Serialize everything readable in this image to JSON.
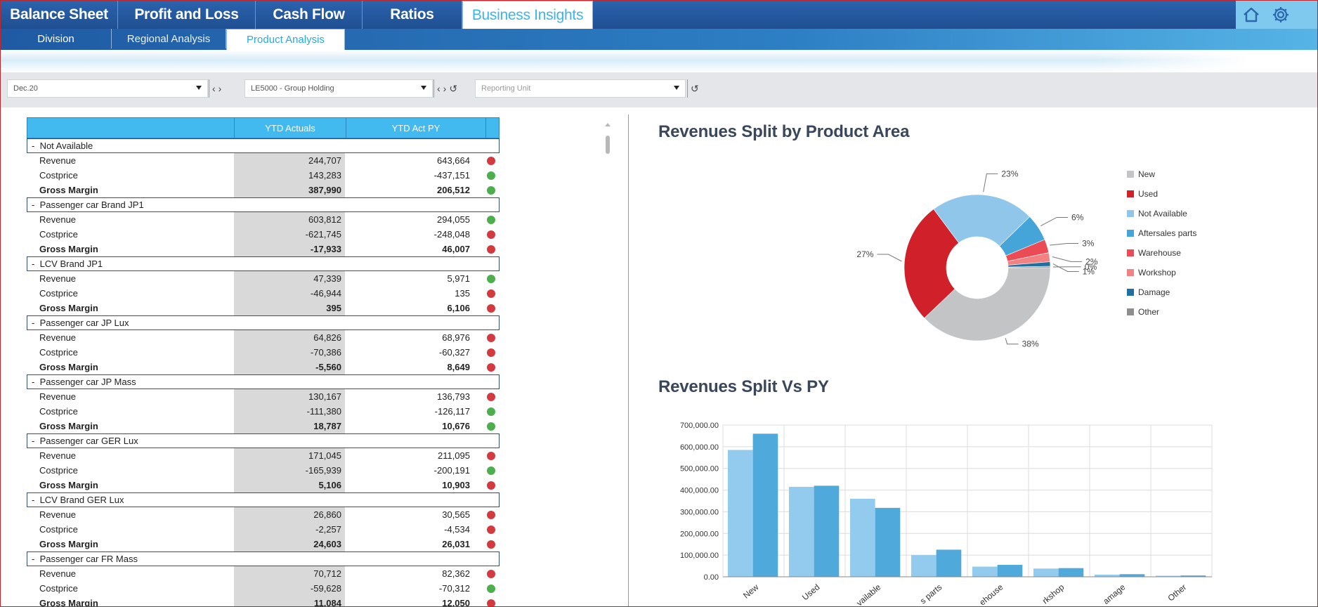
{
  "nav": {
    "main_tabs": [
      {
        "label": "Balance Sheet",
        "active": false
      },
      {
        "label": "Profit and Loss",
        "active": false
      },
      {
        "label": "Cash Flow",
        "active": false
      },
      {
        "label": "Ratios",
        "active": false
      },
      {
        "label": "Business Insights",
        "active": true
      }
    ],
    "sub_tabs": [
      {
        "label": "Division",
        "active": false
      },
      {
        "label": "Regional Analysis",
        "active": false
      },
      {
        "label": "Product Analysis",
        "active": true
      }
    ],
    "icons": [
      "home-icon",
      "gear-icon"
    ]
  },
  "filters": {
    "period": {
      "value": "Dec.20"
    },
    "entity": {
      "value": "LE5000 - Group Holding"
    },
    "reporting_unit": {
      "placeholder": "Reporting Unit"
    }
  },
  "table": {
    "columns": [
      "",
      "YTD Actuals",
      "YTD Act PY"
    ],
    "groups": [
      {
        "name": "Not Available",
        "rows": [
          {
            "label": "Revenue",
            "ytd": "244,707",
            "py": "643,664",
            "status": "red"
          },
          {
            "label": "Costprice",
            "ytd": "143,283",
            "py": "-437,151",
            "status": "green"
          },
          {
            "label": "Gross Margin",
            "ytd": "387,990",
            "py": "206,512",
            "status": "green"
          }
        ]
      },
      {
        "name": "Passenger car Brand JP1",
        "rows": [
          {
            "label": "Revenue",
            "ytd": "603,812",
            "py": "294,055",
            "status": "green"
          },
          {
            "label": "Costprice",
            "ytd": "-621,745",
            "py": "-248,048",
            "status": "red"
          },
          {
            "label": "Gross Margin",
            "ytd": "-17,933",
            "py": "46,007",
            "status": "red"
          }
        ]
      },
      {
        "name": "LCV Brand JP1",
        "rows": [
          {
            "label": "Revenue",
            "ytd": "47,339",
            "py": "5,971",
            "status": "green"
          },
          {
            "label": "Costprice",
            "ytd": "-46,944",
            "py": "135",
            "status": "red"
          },
          {
            "label": "Gross Margin",
            "ytd": "395",
            "py": "6,106",
            "status": "red"
          }
        ]
      },
      {
        "name": "Passenger car JP Lux",
        "rows": [
          {
            "label": "Revenue",
            "ytd": "64,826",
            "py": "68,976",
            "status": "red"
          },
          {
            "label": "Costprice",
            "ytd": "-70,386",
            "py": "-60,327",
            "status": "red"
          },
          {
            "label": "Gross Margin",
            "ytd": "-5,560",
            "py": "8,649",
            "status": "red"
          }
        ]
      },
      {
        "name": "Passenger car JP Mass",
        "rows": [
          {
            "label": "Revenue",
            "ytd": "130,167",
            "py": "136,793",
            "status": "red"
          },
          {
            "label": "Costprice",
            "ytd": "-111,380",
            "py": "-126,117",
            "status": "green"
          },
          {
            "label": "Gross Margin",
            "ytd": "18,787",
            "py": "10,676",
            "status": "green"
          }
        ]
      },
      {
        "name": "Passenger car GER Lux",
        "rows": [
          {
            "label": "Revenue",
            "ytd": "171,045",
            "py": "211,095",
            "status": "red"
          },
          {
            "label": "Costprice",
            "ytd": "-165,939",
            "py": "-200,191",
            "status": "green"
          },
          {
            "label": "Gross Margin",
            "ytd": "5,106",
            "py": "10,903",
            "status": "red"
          }
        ]
      },
      {
        "name": "LCV Brand GER Lux",
        "rows": [
          {
            "label": "Revenue",
            "ytd": "26,860",
            "py": "30,565",
            "status": "red"
          },
          {
            "label": "Costprice",
            "ytd": "-2,257",
            "py": "-4,534",
            "status": "red"
          },
          {
            "label": "Gross Margin",
            "ytd": "24,603",
            "py": "26,031",
            "status": "red"
          }
        ]
      },
      {
        "name": "Passenger car FR Mass",
        "rows": [
          {
            "label": "Revenue",
            "ytd": "70,712",
            "py": "82,362",
            "status": "red"
          },
          {
            "label": "Costprice",
            "ytd": "-59,628",
            "py": "-70,312",
            "status": "green"
          },
          {
            "label": "Gross Margin",
            "ytd": "11,084",
            "py": "12,050",
            "status": "red"
          }
        ]
      }
    ]
  },
  "colors": {
    "red": "#d23a3f",
    "green": "#4cae4c"
  },
  "chart_data": [
    {
      "type": "pie",
      "title": "Revenues Split by Product Area",
      "donut": true,
      "legend_position": "right",
      "slices": [
        {
          "name": "New",
          "value": 38,
          "label": "38%",
          "color": "#c2c4c6"
        },
        {
          "name": "Used",
          "value": 27,
          "label": "27%",
          "color": "#d0202a"
        },
        {
          "name": "Not Available",
          "value": 23,
          "label": "23%",
          "color": "#8fc6ea"
        },
        {
          "name": "Aftersales parts",
          "value": 6,
          "label": "6%",
          "color": "#45a4d8"
        },
        {
          "name": "Warehouse",
          "value": 3,
          "label": "3%",
          "color": "#ea4b55"
        },
        {
          "name": "Workshop",
          "value": 2,
          "label": "2%",
          "color": "#f28282"
        },
        {
          "name": "Damage",
          "value": 1,
          "label": "1%",
          "color": "#1f6fa0"
        },
        {
          "name": "Other",
          "value": 0.3,
          "label": "0%",
          "color": "#8e8e8e"
        }
      ]
    },
    {
      "type": "bar",
      "title": "Revenues Split Vs PY",
      "grid": true,
      "categories": [
        "New",
        "Used",
        "Not Available",
        "Aftersales parts",
        "Warehouse",
        "Workshop",
        "Damage",
        "Other"
      ],
      "tick_labels": [
        "New",
        "Used",
        "vailable",
        "s parts",
        "ehouse",
        "rkshop",
        "amage",
        "Other"
      ],
      "series": [
        {
          "values": [
            585000,
            415000,
            360000,
            100000,
            47000,
            38000,
            10000,
            5000
          ],
          "color": "#92cbee"
        },
        {
          "values": [
            660000,
            420000,
            318000,
            125000,
            55000,
            40000,
            12000,
            6000
          ],
          "color": "#4fa9da"
        }
      ],
      "ylim": [
        0,
        700000
      ],
      "yticks": [
        "0.00",
        "100,000.00",
        "200,000.00",
        "300,000.00",
        "400,000.00",
        "500,000.00",
        "600,000.00",
        "700,000.00"
      ]
    }
  ]
}
